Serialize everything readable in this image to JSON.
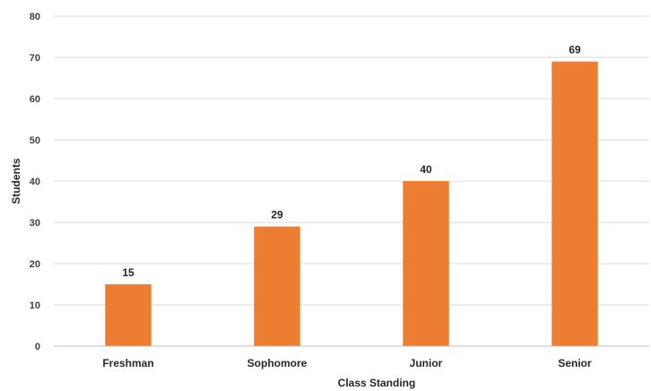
{
  "chart_data": {
    "type": "bar",
    "categories": [
      "Freshman",
      "Sophomore",
      "Junior",
      "Senior"
    ],
    "values": [
      15,
      29,
      40,
      69
    ],
    "xlabel": "Class Standing",
    "ylabel": "Students",
    "ylim": [
      0,
      80
    ],
    "yticks": [
      0,
      10,
      20,
      30,
      40,
      50,
      60,
      70,
      80
    ],
    "grid": true,
    "legend": "none",
    "data_labels": true,
    "colors": {
      "bar": "#ED7D31",
      "gridline": "#D9D9D9",
      "axis": "#BFBFBF"
    }
  }
}
